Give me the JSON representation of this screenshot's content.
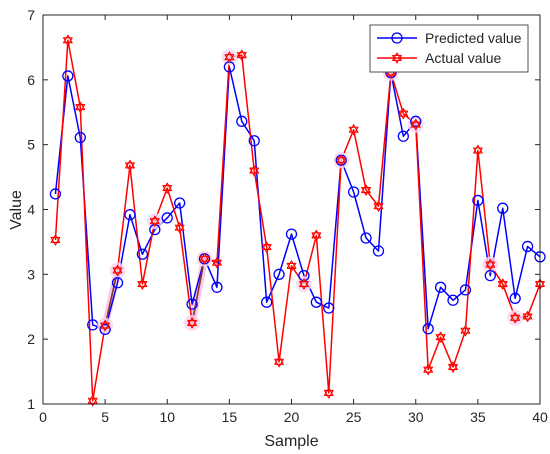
{
  "chart_data": {
    "type": "line",
    "xlabel": "Sample",
    "ylabel": "Value",
    "xlim": [
      0,
      40
    ],
    "ylim": [
      1,
      7
    ],
    "xticks": [
      0,
      5,
      10,
      15,
      20,
      25,
      30,
      35,
      40
    ],
    "yticks": [
      1,
      2,
      3,
      4,
      5,
      6,
      7
    ],
    "grid": false,
    "legend_position": "top-right",
    "x": [
      1,
      2,
      3,
      4,
      5,
      6,
      7,
      8,
      9,
      10,
      11,
      12,
      13,
      14,
      15,
      16,
      17,
      18,
      19,
      20,
      21,
      22,
      23,
      24,
      25,
      26,
      27,
      28,
      29,
      30,
      31,
      32,
      33,
      34,
      35,
      36,
      37,
      38,
      39,
      40
    ],
    "series": [
      {
        "name": "Predicted value",
        "color": "#0000ff",
        "marker": "circle",
        "values": [
          4.24,
          6.06,
          5.11,
          2.22,
          2.15,
          2.87,
          3.92,
          3.31,
          3.69,
          3.87,
          4.1,
          2.54,
          3.24,
          2.8,
          6.2,
          5.36,
          5.06,
          2.57,
          3.0,
          3.62,
          2.98,
          2.57,
          2.48,
          4.76,
          4.27,
          3.56,
          3.36,
          6.11,
          5.13,
          5.36,
          2.16,
          2.8,
          2.6,
          2.76,
          4.14,
          2.98,
          4.02,
          2.63,
          3.43,
          3.27
        ]
      },
      {
        "name": "Actual value",
        "color": "#ff0000",
        "marker": "hexagram",
        "values": [
          3.53,
          6.61,
          5.58,
          1.05,
          2.21,
          3.06,
          4.68,
          2.85,
          3.82,
          4.33,
          3.72,
          2.25,
          3.24,
          3.18,
          6.35,
          6.38,
          4.6,
          3.42,
          1.65,
          3.13,
          2.85,
          3.6,
          1.17,
          4.76,
          5.23,
          4.3,
          4.05,
          6.11,
          5.48,
          5.31,
          1.53,
          2.03,
          1.57,
          2.13,
          4.91,
          3.15,
          2.85,
          2.33,
          2.35,
          2.85
        ]
      }
    ]
  }
}
